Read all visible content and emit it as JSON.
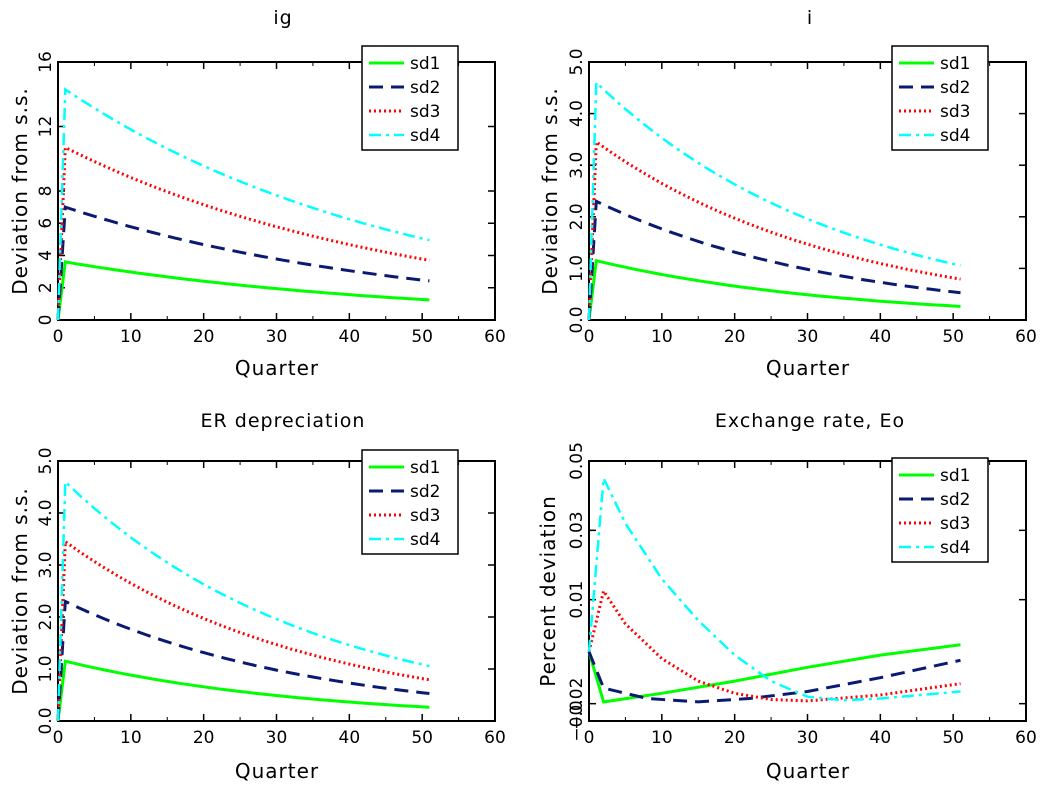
{
  "chart_data": [
    {
      "type": "line",
      "title": "ig",
      "xlabel": "Quarter",
      "ylabel": "Deviation from s.s.",
      "xlim": [
        0,
        60
      ],
      "ylim": [
        0,
        16
      ],
      "xticks": [
        0,
        10,
        20,
        30,
        40,
        50,
        60
      ],
      "xtick_labels": [
        "0",
        "10",
        "20",
        "30",
        "40",
        "50",
        "60"
      ],
      "yticks": [
        0,
        2,
        4,
        6,
        8,
        12,
        16
      ],
      "ytick_labels": [
        "0",
        "2",
        "4",
        "6",
        "8",
        "12",
        "16"
      ],
      "grid": false,
      "legend": "top-right",
      "decay": 0.979,
      "series": [
        {
          "name": "sd1",
          "peak": 3.6,
          "style": "solid",
          "color": "#00ff00"
        },
        {
          "name": "sd2",
          "peak": 7.0,
          "style": "dashed",
          "color": "#0a1a70"
        },
        {
          "name": "sd3",
          "peak": 10.7,
          "style": "dotted",
          "color": "#ff0000"
        },
        {
          "name": "sd4",
          "peak": 14.3,
          "style": "dashdot",
          "color": "#00ffff"
        }
      ]
    },
    {
      "type": "line",
      "title": "i",
      "xlabel": "Quarter",
      "ylabel": "Deviation from s.s.",
      "xlim": [
        0,
        60
      ],
      "ylim": [
        0,
        5
      ],
      "xticks": [
        0,
        10,
        20,
        30,
        40,
        50,
        60
      ],
      "xtick_labels": [
        "0",
        "10",
        "20",
        "30",
        "40",
        "50",
        "60"
      ],
      "yticks": [
        0,
        1,
        2,
        3,
        4,
        5
      ],
      "ytick_labels": [
        "0.0",
        "1.0",
        "2.0",
        "3.0",
        "4.0",
        "5.0"
      ],
      "grid": false,
      "legend": "top-right",
      "decay": 0.971,
      "series": [
        {
          "name": "sd1",
          "peak": 1.15,
          "style": "solid",
          "color": "#00ff00"
        },
        {
          "name": "sd2",
          "peak": 2.3,
          "style": "dashed",
          "color": "#0a1a70"
        },
        {
          "name": "sd3",
          "peak": 3.45,
          "style": "dotted",
          "color": "#ff0000"
        },
        {
          "name": "sd4",
          "peak": 4.6,
          "style": "dashdot",
          "color": "#00ffff"
        }
      ]
    },
    {
      "type": "line",
      "title": "ER depreciation",
      "xlabel": "Quarter",
      "ylabel": "Deviation from s.s.",
      "xlim": [
        0,
        60
      ],
      "ylim": [
        0,
        5
      ],
      "xticks": [
        0,
        10,
        20,
        30,
        40,
        50,
        60
      ],
      "xtick_labels": [
        "0",
        "10",
        "20",
        "30",
        "40",
        "50",
        "60"
      ],
      "yticks": [
        0,
        1,
        2,
        3,
        4,
        5
      ],
      "ytick_labels": [
        "0.0",
        "1.0",
        "2.0",
        "3.0",
        "4.0",
        "5.0"
      ],
      "grid": false,
      "legend": "top-right",
      "decay": 0.971,
      "series": [
        {
          "name": "sd1",
          "peak": 1.15,
          "style": "solid",
          "color": "#00ff00"
        },
        {
          "name": "sd2",
          "peak": 2.3,
          "style": "dashed",
          "color": "#0a1a70"
        },
        {
          "name": "sd3",
          "peak": 3.45,
          "style": "dotted",
          "color": "#ff0000"
        },
        {
          "name": "sd4",
          "peak": 4.6,
          "style": "dashdot",
          "color": "#00ffff"
        }
      ]
    },
    {
      "type": "line",
      "title": "Exchange rate, Eo",
      "xlabel": "Quarter",
      "ylabel": "Percent deviation",
      "xlim": [
        0,
        60
      ],
      "ylim": [
        -0.025,
        0.05
      ],
      "xticks": [
        0,
        10,
        20,
        30,
        40,
        50,
        60
      ],
      "xtick_labels": [
        "0",
        "10",
        "20",
        "30",
        "40",
        "50",
        "60"
      ],
      "yticks": [
        -0.025,
        -0.02,
        0.01,
        0.03,
        0.05
      ],
      "ytick_labels": [
        "−0.0",
        "−0.02",
        "0.01",
        "0.03",
        "0.05"
      ],
      "grid": false,
      "legend": "top-right",
      "series": [
        {
          "name": "sd1",
          "style": "solid",
          "color": "#00ff00",
          "x": [
            0,
            2,
            10,
            20,
            30,
            40,
            51
          ],
          "y": [
            -0.005,
            -0.0195,
            -0.017,
            -0.0135,
            -0.0095,
            -0.006,
            -0.003
          ]
        },
        {
          "name": "sd2",
          "style": "dashed",
          "color": "#0a1a70",
          "x": [
            0,
            2,
            8,
            15,
            22,
            30,
            40,
            51
          ],
          "y": [
            -0.005,
            -0.0155,
            -0.0185,
            -0.0195,
            -0.0185,
            -0.0165,
            -0.0125,
            -0.0075
          ]
        },
        {
          "name": "sd3",
          "style": "dotted",
          "color": "#ff0000",
          "x": [
            0,
            2,
            5,
            10,
            15,
            20,
            25,
            30,
            40,
            51
          ],
          "y": [
            -0.005,
            0.0125,
            0.003,
            -0.007,
            -0.0135,
            -0.017,
            -0.0188,
            -0.0192,
            -0.0175,
            -0.0142
          ]
        },
        {
          "name": "sd4",
          "style": "dashdot",
          "color": "#00ffff",
          "x": [
            0,
            2,
            5,
            10,
            15,
            20,
            25,
            30,
            35,
            40,
            51
          ],
          "y": [
            -0.005,
            0.045,
            0.032,
            0.016,
            0.004,
            -0.006,
            -0.0135,
            -0.018,
            -0.019,
            -0.0185,
            -0.0165
          ]
        }
      ]
    }
  ]
}
